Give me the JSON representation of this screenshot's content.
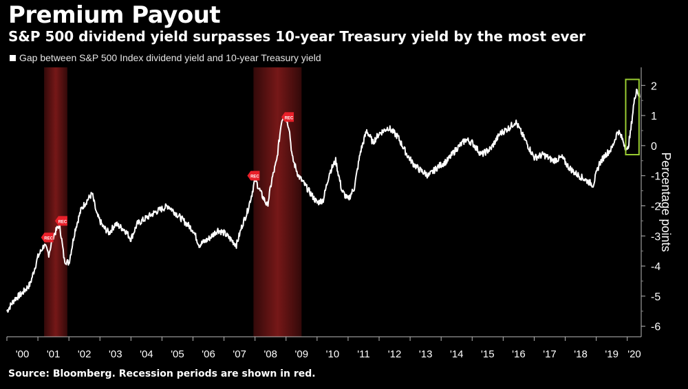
{
  "title": "Premium Payout",
  "subtitle": "S&P 500 dividend yield surpasses 10-year Treasury yield by the most ever",
  "source": "Source: Bloomberg. Recession periods are shown in red.",
  "colors": {
    "background": "#000000",
    "line": "#ffffff",
    "recession": "#8b1c1c",
    "highlight": "#9acd32",
    "marker": "#e8202a"
  },
  "chart_data": {
    "type": "line",
    "title": "Premium Payout",
    "ylabel": "Percentage points",
    "ylim": [
      -6.35,
      2.6
    ],
    "xlim": [
      2000.0,
      2020.45
    ],
    "yticks": [
      2,
      1,
      0,
      -1,
      -2,
      -3,
      -4,
      -5,
      -6
    ],
    "ytick_labels": [
      "2",
      "1",
      "0",
      "-1",
      "-2",
      "-3",
      "-4",
      "-5",
      "-6"
    ],
    "xtick_labels": [
      "'00",
      "'01",
      "'02",
      "'03",
      "'04",
      "'05",
      "'06",
      "'07",
      "'08",
      "'09",
      "'10",
      "'11",
      "'12",
      "'13",
      "'14",
      "'15",
      "'16",
      "'17",
      "'18",
      "'19",
      "'20"
    ],
    "legend_position": "top-left",
    "series": [
      {
        "name": "Gap between S&P 500 Index dividend yield and 10-year Treasury yield",
        "x": [
          2000.0,
          2000.25,
          2000.5,
          2000.75,
          2001.0,
          2001.2,
          2001.35,
          2001.5,
          2001.7,
          2001.85,
          2002.0,
          2002.2,
          2002.4,
          2002.6,
          2002.75,
          2002.9,
          2003.1,
          2003.3,
          2003.5,
          2003.8,
          2004.0,
          2004.2,
          2004.5,
          2004.8,
          2005.0,
          2005.2,
          2005.5,
          2005.8,
          2006.0,
          2006.2,
          2006.5,
          2006.8,
          2007.0,
          2007.2,
          2007.4,
          2007.6,
          2007.75,
          2007.9,
          2008.0,
          2008.2,
          2008.4,
          2008.55,
          2008.7,
          2008.85,
          2008.95,
          2009.1,
          2009.2,
          2009.4,
          2009.6,
          2009.8,
          2010.0,
          2010.2,
          2010.4,
          2010.6,
          2010.8,
          2011.0,
          2011.2,
          2011.4,
          2011.6,
          2011.8,
          2012.0,
          2012.3,
          2012.6,
          2012.9,
          2013.1,
          2013.3,
          2013.6,
          2013.9,
          2014.2,
          2014.5,
          2014.8,
          2015.0,
          2015.3,
          2015.6,
          2015.9,
          2016.2,
          2016.4,
          2016.6,
          2016.8,
          2017.0,
          2017.3,
          2017.6,
          2017.9,
          2018.1,
          2018.3,
          2018.6,
          2018.9,
          2019.1,
          2019.3,
          2019.5,
          2019.7,
          2019.85,
          2020.0,
          2020.1,
          2020.2,
          2020.3,
          2020.4
        ],
        "y": [
          -5.5,
          -5.1,
          -4.9,
          -4.6,
          -3.7,
          -3.3,
          -3.6,
          -3.0,
          -2.6,
          -3.8,
          -3.9,
          -2.8,
          -2.1,
          -1.8,
          -1.6,
          -2.3,
          -2.7,
          -2.9,
          -2.6,
          -2.8,
          -3.1,
          -2.6,
          -2.4,
          -2.2,
          -2.1,
          -2.0,
          -2.3,
          -2.6,
          -2.8,
          -3.3,
          -3.1,
          -2.8,
          -2.9,
          -3.1,
          -3.3,
          -2.6,
          -2.2,
          -1.6,
          -1.1,
          -1.6,
          -2.0,
          -1.1,
          -0.5,
          0.8,
          1.1,
          0.6,
          -0.4,
          -1.0,
          -1.3,
          -1.6,
          -1.9,
          -1.8,
          -0.9,
          -0.5,
          -1.5,
          -1.8,
          -1.4,
          -0.2,
          0.5,
          0.1,
          0.4,
          0.6,
          0.3,
          -0.3,
          -0.6,
          -0.8,
          -1.0,
          -0.7,
          -0.5,
          -0.1,
          0.2,
          0.1,
          -0.3,
          -0.1,
          0.4,
          0.6,
          0.8,
          0.4,
          0.0,
          -0.4,
          -0.3,
          -0.5,
          -0.4,
          -0.7,
          -0.9,
          -1.1,
          -1.3,
          -0.6,
          -0.3,
          -0.1,
          0.5,
          0.2,
          -0.2,
          0.4,
          1.3,
          1.9,
          1.6
        ]
      }
    ],
    "recessions": [
      [
        2001.2,
        2001.95
      ],
      [
        2007.95,
        2009.5
      ]
    ],
    "recession_markers": [
      {
        "x": 2001.3,
        "y": -3.05,
        "label": "REC"
      },
      {
        "x": 2001.75,
        "y": -2.5,
        "label": "REC"
      },
      {
        "x": 2007.95,
        "y": -1.0,
        "label": "REC"
      },
      {
        "x": 2009.05,
        "y": 0.95,
        "label": "REC"
      }
    ],
    "highlight_box": {
      "x0": 2019.95,
      "x1": 2020.38,
      "y0": -0.3,
      "y1": 2.2
    }
  }
}
